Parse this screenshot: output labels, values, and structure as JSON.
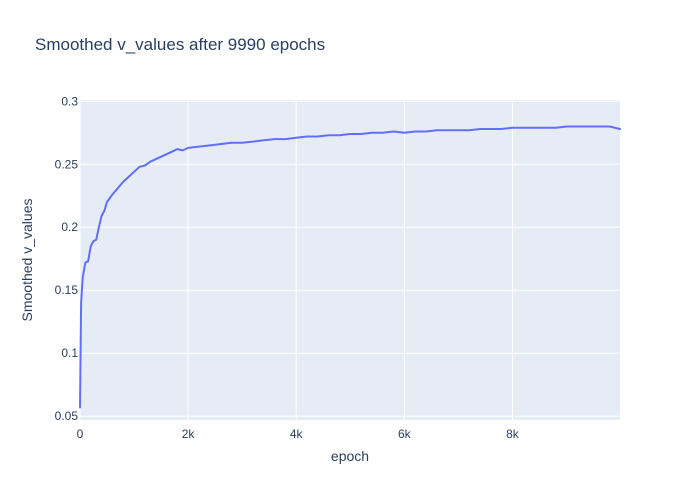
{
  "chart_data": {
    "type": "line",
    "title": "Smoothed v_values after 9990 epochs",
    "xlabel": "epoch",
    "ylabel": "Smoothed v_values",
    "xlim": [
      0,
      9990
    ],
    "ylim": [
      0.047,
      0.301
    ],
    "x_ticks": [
      0,
      2000,
      4000,
      6000,
      8000
    ],
    "x_tick_labels": [
      "0",
      "2k",
      "4k",
      "6k",
      "8k"
    ],
    "y_ticks": [
      0.05,
      0.1,
      0.15,
      0.2,
      0.25,
      0.3
    ],
    "y_tick_labels": [
      "0.05",
      "0.1",
      "0.15",
      "0.2",
      "0.25",
      "0.3"
    ],
    "grid": true,
    "legend": "none",
    "colors": {
      "plot_bg": "#e5ecf6",
      "line": "#636efa",
      "text": "#2a3f5f"
    },
    "series": [
      {
        "x": [
          0,
          20,
          50,
          100,
          150,
          200,
          250,
          300,
          350,
          400,
          450,
          500,
          600,
          700,
          800,
          900,
          1000,
          1100,
          1200,
          1300,
          1400,
          1500,
          1600,
          1700,
          1800,
          1900,
          2000,
          2200,
          2400,
          2600,
          2800,
          3000,
          3200,
          3400,
          3600,
          3800,
          4000,
          4200,
          4400,
          4600,
          4800,
          5000,
          5200,
          5400,
          5600,
          5800,
          6000,
          6200,
          6400,
          6600,
          6800,
          7000,
          7200,
          7400,
          7600,
          7800,
          8000,
          8200,
          8400,
          8600,
          8800,
          9000,
          9200,
          9400,
          9600,
          9800,
          9990
        ],
        "y": [
          0.057,
          0.14,
          0.16,
          0.172,
          0.173,
          0.185,
          0.189,
          0.19,
          0.2,
          0.209,
          0.213,
          0.22,
          0.226,
          0.231,
          0.236,
          0.24,
          0.244,
          0.248,
          0.249,
          0.252,
          0.254,
          0.256,
          0.258,
          0.26,
          0.262,
          0.261,
          0.263,
          0.264,
          0.265,
          0.266,
          0.267,
          0.267,
          0.268,
          0.269,
          0.27,
          0.27,
          0.271,
          0.272,
          0.272,
          0.273,
          0.273,
          0.274,
          0.274,
          0.275,
          0.275,
          0.276,
          0.275,
          0.276,
          0.276,
          0.277,
          0.277,
          0.277,
          0.277,
          0.278,
          0.278,
          0.278,
          0.279,
          0.279,
          0.279,
          0.279,
          0.279,
          0.28,
          0.28,
          0.28,
          0.28,
          0.28,
          0.278
        ]
      }
    ]
  }
}
